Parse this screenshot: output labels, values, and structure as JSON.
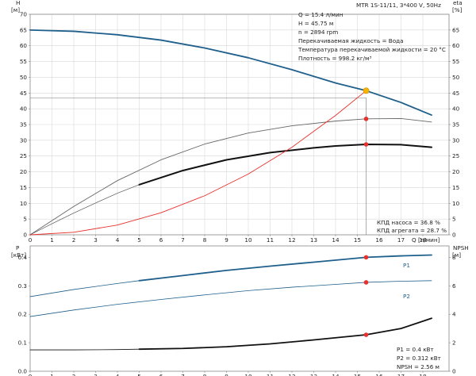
{
  "chart_data": [
    {
      "type": "line",
      "panel": "top",
      "xlabel": "Q [л/мин]",
      "ylabel_left_lines": [
        "H",
        "[м]"
      ],
      "ylabel_right_lines": [
        "eta",
        "[%]"
      ],
      "x_ticks": [
        0,
        1,
        2,
        3,
        4,
        5,
        6,
        7,
        8,
        9,
        10,
        11,
        12,
        13,
        14,
        15,
        16,
        17,
        18
      ],
      "xlim": [
        0,
        19.2
      ],
      "y_ticks": [
        0,
        5,
        10,
        15,
        20,
        25,
        30,
        35,
        40,
        45,
        50,
        55,
        60,
        65,
        70
      ],
      "ylim": [
        0,
        70
      ],
      "y2_ticks": [
        0,
        5,
        10,
        15,
        20,
        25,
        30,
        35,
        40,
        45,
        50,
        55,
        60,
        65
      ],
      "y2lim": [
        0,
        70
      ],
      "grid": true,
      "series": [
        {
          "key": "H",
          "color": "#1f5f8b",
          "width": 1.8,
          "x": [
            0,
            2,
            4,
            6,
            8,
            10,
            12,
            14,
            15.4,
            17,
            18.4
          ],
          "y": [
            65,
            64.6,
            63.5,
            61.8,
            59.3,
            56.2,
            52.4,
            48.2,
            45.75,
            42.0,
            38.0
          ]
        },
        {
          "key": "eta_pump",
          "color": "#666666",
          "width": 0.9,
          "x": [
            0,
            2,
            4,
            6,
            8,
            10,
            12,
            14,
            15.4,
            17,
            18.4
          ],
          "y": [
            0,
            9.0,
            17.2,
            23.8,
            28.8,
            32.3,
            34.6,
            36.1,
            36.8,
            36.9,
            35.8
          ]
        },
        {
          "key": "eta_unit_thin",
          "color": "#555555",
          "width": 0.7,
          "x": [
            0,
            1,
            2,
            3,
            4,
            5
          ],
          "y": [
            0,
            3.5,
            6.9,
            10.1,
            13.2,
            15.9
          ]
        },
        {
          "key": "eta_unit",
          "color": "#111111",
          "width": 2.0,
          "x": [
            5,
            7,
            9,
            11,
            13,
            14,
            15.4,
            17,
            18.4
          ],
          "y": [
            15.9,
            20.4,
            23.8,
            26.1,
            27.6,
            28.2,
            28.7,
            28.6,
            27.8
          ]
        },
        {
          "key": "system",
          "color": "#e8302c",
          "width": 0.9,
          "x": [
            0,
            2,
            4,
            6,
            8,
            10,
            12,
            14,
            15.4
          ],
          "y": [
            0,
            0.8,
            3.1,
            7.0,
            12.4,
            19.3,
            27.8,
            37.9,
            45.75
          ]
        }
      ],
      "duty_point": {
        "x": 15.4,
        "y": 45.75,
        "color": "#f7b500"
      },
      "markers": [
        {
          "x": 15.4,
          "y": 36.8,
          "color": "#e8302c"
        },
        {
          "x": 15.4,
          "y": 28.7,
          "color": "#e8302c"
        }
      ],
      "crosshair": {
        "x": 15.4,
        "y": 43.5
      }
    },
    {
      "type": "line",
      "panel": "bottom",
      "ylabel_left_lines": [
        "P",
        "[кВт]"
      ],
      "ylabel_right_lines": [
        "NPSH",
        "[м]"
      ],
      "x_ticks": [
        0,
        1,
        2,
        3,
        4,
        5,
        6,
        7,
        8,
        9,
        10,
        11,
        12,
        13,
        14,
        15,
        16,
        17,
        18
      ],
      "xlim": [
        0,
        19.2
      ],
      "y_ticks": [
        0,
        0.1,
        0.2,
        0.3,
        0.4
      ],
      "y_tick_labels": [
        "0.0",
        "0.1",
        "0.2",
        "0.3",
        "0.4"
      ],
      "ylim": [
        0,
        0.44
      ],
      "y2_ticks": [
        0,
        2,
        4,
        6,
        8
      ],
      "y2lim": [
        0,
        8.8
      ],
      "grid": false,
      "series": [
        {
          "key": "P1",
          "name": "P1",
          "color": "#1f5f8b",
          "width": 0.8,
          "x": [
            0,
            2,
            4,
            5
          ],
          "y": [
            0.262,
            0.287,
            0.308,
            0.318
          ]
        },
        {
          "key": "P1_bold",
          "color": "#1f5f8b",
          "width": 1.8,
          "x": [
            5,
            7,
            9,
            11,
            13,
            15.4,
            17,
            18.4
          ],
          "y": [
            0.318,
            0.336,
            0.354,
            0.369,
            0.383,
            0.4,
            0.405,
            0.408
          ]
        },
        {
          "key": "P2",
          "name": "P2",
          "color": "#1f5f8b",
          "width": 0.8,
          "x": [
            0,
            2,
            4,
            6,
            8,
            10,
            12,
            14,
            15.4,
            17,
            18.4
          ],
          "y": [
            0.192,
            0.215,
            0.235,
            0.252,
            0.268,
            0.283,
            0.295,
            0.305,
            0.312,
            0.316,
            0.318
          ]
        },
        {
          "key": "NPSH_thin",
          "color": "#111111",
          "width": 0.8,
          "x": [
            0,
            2,
            4,
            5
          ],
          "y": [
            1.5,
            1.5,
            1.52,
            1.55
          ]
        },
        {
          "key": "NPSH",
          "color": "#111111",
          "width": 1.8,
          "x": [
            5,
            7,
            9,
            11,
            13,
            15.4,
            17,
            18.4
          ],
          "y": [
            1.55,
            1.6,
            1.72,
            1.92,
            2.2,
            2.56,
            3.0,
            3.72
          ]
        }
      ],
      "markers": [
        {
          "x": 15.4,
          "y": 0.4,
          "axis": "left",
          "color": "#e8302c"
        },
        {
          "x": 15.4,
          "y": 0.312,
          "axis": "left",
          "color": "#e8302c"
        },
        {
          "x": 15.4,
          "y": 2.56,
          "axis": "right",
          "color": "#e8302c"
        }
      ]
    }
  ],
  "header": {
    "title": "MTR 1S-11/11, 3*400 V, 50Hz"
  },
  "info_lines": [
    "Q = 15.4 л/мин",
    "H = 45.75 м",
    "n = 2894 rpm",
    "Перекачиваемая жидкость = Вода",
    "Температура перекачиваемой жидкости = 20 °C",
    "Плотность = 998.2 кг/м³"
  ],
  "efficiency_labels": [
    "КПД насоса = 36.8 %",
    "КПД агрегата = 28.7 %"
  ],
  "power_labels": [
    "P1 = 0.4 кВт",
    "P2 = 0.312 кВт",
    "NPSH = 2.56 м"
  ],
  "series_labels": {
    "p1": "P1",
    "p2": "P2"
  }
}
